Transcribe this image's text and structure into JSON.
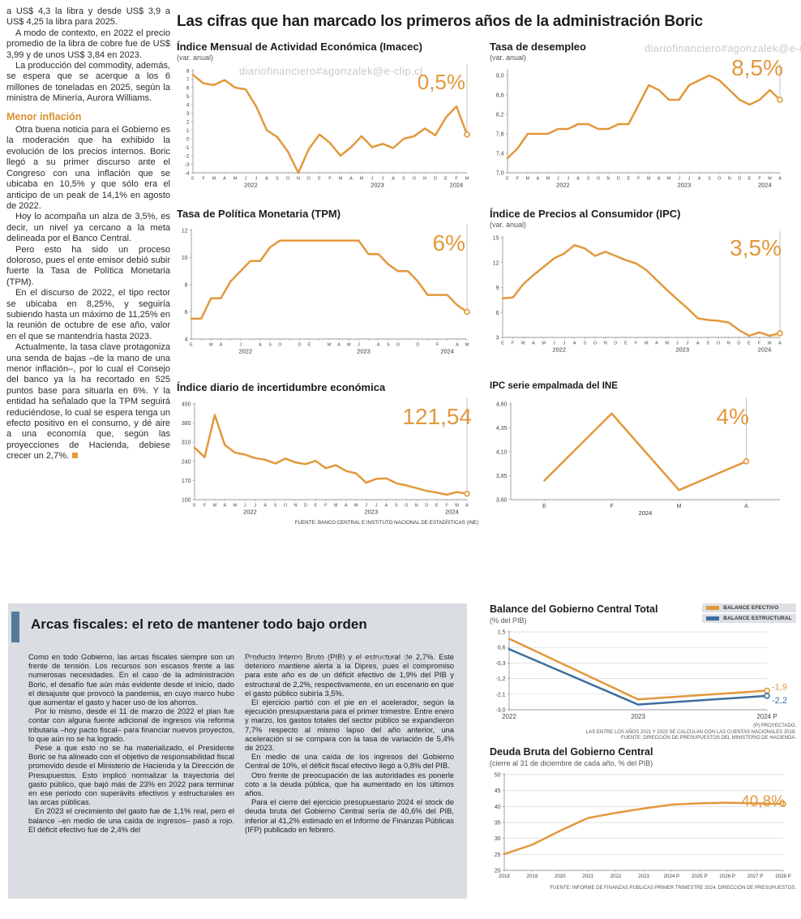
{
  "page": {
    "watermark": "diariofinanciero#agonzalek@e-clip.cl"
  },
  "headline": "Las cifras que han marcado los primeros años de la administración Boric",
  "left_article": {
    "paragraphs": [
      "a US$ 4,3 la libra y desde US$ 3,9 a US$ 4,25 la libra para 2025.",
      "A modo de contexto, en 2022 el precio promedio de la libra de cobre fue de US$ 3,99 y de unos US$ 3,84 en 2023.",
      "La producción del commodity, además, se espera que se acerque a los 6 millones de toneladas en 2025, según la ministra de Minería, Aurora Williams."
    ],
    "subhead": "Menor inflación",
    "paragraphs2": [
      "Otra buena noticia para el Gobierno es la moderación que ha exhibido la evolución de los precios internos. Boric llegó a su primer discurso ante el Congreso con una inflación que se ubicaba en 10,5% y que sólo era el anticipo de un peak de 14,1% en agosto de 2022.",
      "Hoy lo acompaña un alza de 3,5%, es decir, un nivel ya cercano a la meta delineada por el Banco Central.",
      "Pero esto ha sido un proceso doloroso, pues el ente emisor debió subir fuerte la Tasa de Política Monetaria (TPM).",
      "En el discurso de 2022, el tipo rector se ubicaba en 8,25%, y seguiría subiendo hasta un máximo de 11,25% en la reunión de octubre de ese año, valor en el que se mantendría hasta 2023.",
      "Actualmente, la tasa clave protagoniza una senda de bajas –de la mano de una menor inflación–, por lo cual el Consejo del banco ya la ha recortado en 525 puntos base para situarla en 6%. Y la entidad ha señalado que la TPM seguirá reduciéndose, lo cual se espera tenga un efecto positivo en el consumo, y dé aire a una economía que, según las proyecciones de Hacienda, debiese crecer un 2,7%."
    ]
  },
  "fiscal_article": {
    "title": "Arcas fiscales: el reto de mantener todo bajo orden",
    "col1": [
      "Como en todo Gobierno, las arcas fiscales siempre son un frente de tensión. Los recursos son escasos frente a las numerosas necesidades. En el caso de la administración Boric, el desafío fue aún más evidente desde el inicio, dado el desajuste que provocó la pandemia, en cuyo marco hubo que aumentar el gasto y hacer uso de los ahorros.",
      "Por lo mismo, desde el 11 de marzo de 2022 el plan fue contar con alguna fuente adicional de ingresos vía reforma tributaria –hoy pacto fiscal– para financiar nuevos proyectos, lo que aún no se ha logrado.",
      "Pese a que esto no se ha materializado, el Presidente Boric se ha alineado con el objetivo de responsabilidad fiscal promovido desde el Ministerio de Hacienda y la Dirección de Presupuestos. Esto implicó normalizar la trayectoria del gasto público, que bajó más de 23% en 2022 para terminar en ese período con superávits efectivos y estructurales en las arcas públicas.",
      "En 2023 el crecimiento del gasto fue de 1,1% real, pero el balance –en medio de una caída de ingresos– pasó a rojo. El déficit efectivo fue de 2,4% del"
    ],
    "col2": [
      "Producto Interno Bruto (PIB) y el estructural de 2,7%. Este deterioro mantiene alerta a la Dipres, pues el compromiso para este año es de un déficit efectivo de 1,9% del PIB y estructural de 2,2%, respectivamente, en un escenario en que el gasto público subiría 3,5%.",
      "El ejercicio partió con el pie en el acelerador, según la ejecución presupuestaria para el primer trimestre. Entre enero y marzo, los gastos totales del sector público se expandieron 7,7% respecto al mismo lapso del año anterior, una aceleración si se compara con la tasa de variación de 5,4% de 2023.",
      "En medio de una caída de los ingresos del Gobierno Central de 10%, el déficit fiscal efectivo llegó a 0,8% del PIB.",
      "Otro frente de preocupación de las autoridades es ponerle coto a la deuda pública, que ha aumentado en los últimos años.",
      "Para el cierre del ejercicio presupuestario 2024 el stock de deuda bruta del Gobierno Central sería de 40,6% del PIB, inferior al 41,2% estimado en el Informe de Finanzas Públicas (IFP) publicado en febrero."
    ]
  },
  "sources": {
    "top_charts": "FUENTE: BANCO CENTRAL E INSTITUTO NACIONAL DE ESTADÍSTICAS (INE)",
    "balance_note1": "(P) PROYECTADO.",
    "balance_note2": "LAS ENTRE LOS AÑOS 2021 Y 2023 SE CALCULAN CON LAS CUENTAS NACIONALES 2018.",
    "balance_note3": "FUENTE: DIRECCIÓN DE PRESUPUESTOS DEL MINISTERIO DE HACIENDA.",
    "debt_source": "FUENTE: INFORME DE FINANZAS PÚBLICAS PRIMER TRIMESTRE 2024, DIRECCIÓN DE PRESUPUESTOS."
  },
  "colors": {
    "accent_orange": "#E2983B",
    "accent_blue": "#3C6E9E",
    "subhead_orange": "#D8912E",
    "graybox": "#DADDE1",
    "title_bar_blue": "#567A9B"
  },
  "chart_data": [
    {
      "id": "imacec",
      "type": "line",
      "title": "Índice Mensual de Actividad Económica (Imacec)",
      "subtitle": "(var. anual)",
      "big_label": "0,5%",
      "ylim": [
        -4,
        8
      ],
      "ytick_values": [
        8,
        7,
        6,
        5,
        4,
        3,
        2,
        1,
        0,
        -1,
        -2,
        -3,
        -4
      ],
      "ytick_labels": [
        "8",
        "7",
        "6",
        "5",
        "4",
        "3",
        "2",
        "1",
        "0",
        "-1",
        "-2",
        "-3",
        "-4"
      ],
      "x_labels": [
        "E",
        "F",
        "M",
        "A",
        "M",
        "J",
        "J",
        "A",
        "S",
        "O",
        "N",
        "D",
        "E",
        "F",
        "M",
        "A",
        "M",
        "J",
        "J",
        "A",
        "S",
        "O",
        "N",
        "D",
        "E",
        "F",
        "M"
      ],
      "year_labels": [
        {
          "label": "2022",
          "index": 5.5
        },
        {
          "label": "2023",
          "index": 17.5
        },
        {
          "label": "2024",
          "index": 25
        }
      ],
      "margins": {
        "l": 20,
        "r": 14,
        "t": 10,
        "b": 22
      },
      "y_font": 6.5,
      "x_font": 5.5,
      "end_marker": true,
      "callout": true,
      "grid": false,
      "series": [
        {
          "name": "Imacec",
          "color": "#E2983B",
          "values": [
            7.5,
            6.5,
            6.3,
            6.9,
            6.0,
            5.8,
            3.8,
            1.0,
            0.2,
            -1.5,
            -4.0,
            -1.2,
            0.5,
            -0.5,
            -2.0,
            -1.0,
            0.3,
            -1.0,
            -0.6,
            -1.1,
            0.0,
            0.3,
            1.2,
            0.4,
            2.5,
            3.8,
            0.5
          ]
        }
      ]
    },
    {
      "id": "desempleo",
      "type": "line",
      "title": "Tasa de desempleo",
      "subtitle": "(var. anual)",
      "big_label": "8,5%",
      "ylim": [
        7.0,
        9.1
      ],
      "ytick_values": [
        9.0,
        8.6,
        8.2,
        7.8,
        7.4,
        7.0
      ],
      "ytick_labels": [
        "9,0",
        "8,6",
        "8,2",
        "7,8",
        "7,4",
        "7,0"
      ],
      "x_labels": [
        "E",
        "F",
        "M",
        "A",
        "M",
        "J",
        "J",
        "A",
        "S",
        "O",
        "N",
        "D",
        "E",
        "F",
        "M",
        "A",
        "M",
        "J",
        "J",
        "A",
        "S",
        "O",
        "N",
        "D",
        "E",
        "F",
        "M",
        "A"
      ],
      "year_labels": [
        {
          "label": "2022",
          "index": 5.5
        },
        {
          "label": "2023",
          "index": 17.5
        },
        {
          "label": "2024",
          "index": 25.5
        }
      ],
      "margins": {
        "l": 22,
        "r": 14,
        "t": 10,
        "b": 22
      },
      "y_font": 7,
      "x_font": 5.5,
      "end_marker": true,
      "callout": true,
      "grid": false,
      "series": [
        {
          "name": "Tasa de desempleo",
          "color": "#E2983B",
          "values": [
            7.3,
            7.5,
            7.8,
            7.8,
            7.8,
            7.9,
            7.9,
            8.0,
            8.0,
            7.9,
            7.9,
            8.0,
            8.0,
            8.4,
            8.8,
            8.7,
            8.5,
            8.5,
            8.8,
            8.9,
            9.0,
            8.9,
            8.7,
            8.5,
            8.4,
            8.5,
            8.7,
            8.5
          ]
        }
      ]
    },
    {
      "id": "tpm",
      "type": "line",
      "title": "Tasa de Política Monetaria (TPM)",
      "subtitle": "",
      "big_label": "6%",
      "ylim": [
        4,
        12
      ],
      "ytick_values": [
        12,
        10,
        8,
        6,
        4
      ],
      "ytick_labels": [
        "12",
        "10",
        "8",
        "6",
        "4"
      ],
      "x_labels": [
        "E",
        "",
        "M",
        "A",
        "",
        "J",
        "",
        "A",
        "S",
        "O",
        "",
        "D",
        "E",
        "",
        "M",
        "A",
        "M",
        "J",
        "",
        "A",
        "S",
        "O",
        "",
        "D",
        "",
        "F",
        "",
        "A",
        "M"
      ],
      "year_labels": [
        {
          "label": "2022",
          "index": 5.5
        },
        {
          "label": "2023",
          "index": 17.5
        },
        {
          "label": "2024",
          "index": 26
        }
      ],
      "margins": {
        "l": 18,
        "r": 14,
        "t": 12,
        "b": 22
      },
      "y_font": 7,
      "x_font": 5.5,
      "end_marker": true,
      "callout": true,
      "grid": false,
      "series": [
        {
          "name": "TPM",
          "color": "#E2983B",
          "values": [
            5.5,
            5.5,
            7.0,
            7.0,
            8.25,
            9.0,
            9.75,
            9.75,
            10.75,
            11.25,
            11.25,
            11.25,
            11.25,
            11.25,
            11.25,
            11.25,
            11.25,
            11.25,
            10.25,
            10.25,
            9.5,
            9.0,
            9.0,
            8.25,
            7.25,
            7.25,
            7.25,
            6.5,
            6.0
          ]
        }
      ]
    },
    {
      "id": "ipc",
      "type": "line",
      "title": "Índice de Precios al Consumidor (IPC)",
      "subtitle": "(var. anual)",
      "big_label": "3,5%",
      "ylim": [
        3,
        15
      ],
      "ytick_values": [
        15,
        12,
        9,
        6,
        3
      ],
      "ytick_labels": [
        "15",
        "12",
        "9",
        "6",
        "3"
      ],
      "x_labels": [
        "E",
        "F",
        "M",
        "A",
        "M",
        "J",
        "J",
        "A",
        "S",
        "O",
        "N",
        "D",
        "E",
        "F",
        "M",
        "A",
        "M",
        "J",
        "J",
        "A",
        "S",
        "O",
        "N",
        "D",
        "E",
        "F",
        "M",
        "A"
      ],
      "year_labels": [
        {
          "label": "2022",
          "index": 5.5
        },
        {
          "label": "2023",
          "index": 17.5
        },
        {
          "label": "2024",
          "index": 25.5
        }
      ],
      "margins": {
        "l": 16,
        "r": 14,
        "t": 10,
        "b": 22
      },
      "y_font": 7,
      "x_font": 5.5,
      "end_marker": true,
      "callout": true,
      "grid": false,
      "series": [
        {
          "name": "IPC",
          "color": "#E2983B",
          "values": [
            7.7,
            7.8,
            9.4,
            10.5,
            11.5,
            12.5,
            13.1,
            14.1,
            13.7,
            12.8,
            13.3,
            12.8,
            12.3,
            11.9,
            11.1,
            9.9,
            8.7,
            7.6,
            6.5,
            5.3,
            5.1,
            5.0,
            4.8,
            3.9,
            3.2,
            3.6,
            3.2,
            3.5
          ]
        }
      ]
    },
    {
      "id": "incertidumbre",
      "type": "line",
      "title": "Índice diario de incertidumbre económica",
      "subtitle": "",
      "big_label": "121,54",
      "ylim": [
        100,
        450
      ],
      "ytick_values": [
        450,
        380,
        310,
        240,
        170,
        100
      ],
      "ytick_labels": [
        "450",
        "380",
        "310",
        "240",
        "170",
        "100"
      ],
      "x_labels": [
        "E",
        "F",
        "M",
        "A",
        "M",
        "J",
        "J",
        "A",
        "S",
        "O",
        "N",
        "D",
        "E",
        "F",
        "M",
        "A",
        "M",
        "J",
        "J",
        "A",
        "S",
        "O",
        "N",
        "D",
        "E",
        "F",
        "M",
        "A"
      ],
      "year_labels": [
        {
          "label": "2022",
          "index": 5.5
        },
        {
          "label": "2023",
          "index": 17.5
        },
        {
          "label": "2024",
          "index": 25.5
        }
      ],
      "margins": {
        "l": 22,
        "r": 14,
        "t": 12,
        "b": 22
      },
      "y_font": 7,
      "x_font": 5.5,
      "end_marker": true,
      "callout": true,
      "grid": false,
      "series": [
        {
          "name": "Incertidumbre económica",
          "color": "#E2983B",
          "values": [
            290,
            255,
            410,
            300,
            272,
            265,
            252,
            246,
            232,
            250,
            236,
            230,
            242,
            215,
            226,
            205,
            196,
            162,
            176,
            178,
            160,
            152,
            142,
            132,
            126,
            118,
            128,
            121.54
          ]
        }
      ]
    },
    {
      "id": "ipc_empalmada",
      "type": "line",
      "title": "IPC serie empalmada del INE",
      "subtitle": "",
      "big_label": "4%",
      "ylim": [
        3.6,
        4.6
      ],
      "ytick_values": [
        4.6,
        4.35,
        4.1,
        3.85,
        3.6
      ],
      "ytick_labels": [
        "4,60",
        "4,35",
        "4,10",
        "3,85",
        "3,60"
      ],
      "x_labels": [
        "E",
        "F",
        "M",
        "A"
      ],
      "year_labels": [
        {
          "label": "2024",
          "index": 1.5
        }
      ],
      "margins": {
        "l": 26,
        "r": 14,
        "t": 12,
        "b": 22
      },
      "band": true,
      "y_font": 7,
      "x_font": 7,
      "end_marker": true,
      "callout": true,
      "grid": false,
      "series": [
        {
          "name": "IPC serie empalmada",
          "color": "#E2983B",
          "values": [
            3.8,
            4.5,
            3.7,
            4.0
          ]
        }
      ]
    },
    {
      "id": "balance",
      "type": "line",
      "title": "Balance del Gobierno Central Total",
      "subtitle": "(% del PIB)",
      "ylim": [
        -3.0,
        1.5
      ],
      "ytick_values": [
        1.5,
        0.6,
        -0.3,
        -1.2,
        -2.1,
        -3.0
      ],
      "ytick_labels": [
        "1,5",
        "0,6",
        "-0,3",
        "-1,2",
        "-2,1",
        "-3,0"
      ],
      "x_labels": [
        "2022",
        "2023",
        "2024 P"
      ],
      "year_labels": [],
      "margins": {
        "l": 24,
        "r": 36,
        "t": 8,
        "b": 14
      },
      "y_font": 7,
      "x_font": 8,
      "end_marker": true,
      "callout": false,
      "grid": true,
      "series": [
        {
          "name": "BALANCE EFECTIVO",
          "color": "#E2983B",
          "end_label": "-1,9",
          "label_dy": -1,
          "values": [
            1.1,
            -2.4,
            -1.9
          ]
        },
        {
          "name": "BALANCE ESTRUCTURAL",
          "color": "#3C6E9E",
          "end_label": "-2,2",
          "label_dy": 9,
          "values": [
            0.5,
            -2.7,
            -2.2
          ]
        }
      ]
    },
    {
      "id": "deuda",
      "type": "line",
      "title": "Deuda Bruta del Gobierno Central",
      "subtitle": "(cierre al 31 de diciembre de cada año, % del PIB)",
      "big_label": "40,8%",
      "ylim": [
        20,
        50
      ],
      "ytick_values": [
        50,
        45,
        40,
        35,
        30,
        25,
        20
      ],
      "ytick_labels": [
        "50",
        "45",
        "40",
        "35",
        "30",
        "25",
        "20"
      ],
      "x_labels": [
        "2018",
        "2019",
        "2020",
        "2021",
        "2022",
        "2023",
        "2024 P",
        "2025 P",
        "2026 P",
        "2027 P",
        "2028 P"
      ],
      "year_labels": [],
      "margins": {
        "l": 18,
        "r": 16,
        "t": 8,
        "b": 16
      },
      "y_font": 7,
      "x_font": 6.2,
      "end_marker": true,
      "callout": false,
      "grid": true,
      "series": [
        {
          "name": "Deuda bruta",
          "color": "#E2983B",
          "values": [
            25.1,
            28.0,
            32.4,
            36.4,
            38.0,
            39.4,
            40.6,
            41.0,
            41.2,
            41.0,
            40.8
          ]
        }
      ]
    }
  ]
}
